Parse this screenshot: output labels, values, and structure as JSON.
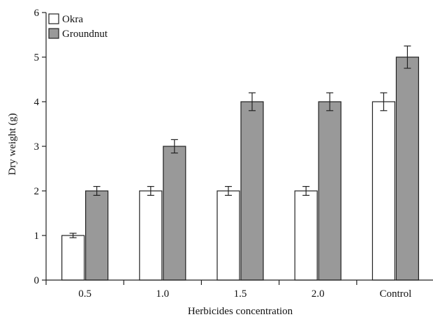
{
  "chart_data": {
    "type": "bar",
    "xlabel": "Herbicides concentration",
    "ylabel": "Dry weight (g)",
    "categories": [
      "0.5",
      "1.0",
      "1.5",
      "2.0",
      "Control"
    ],
    "ylim": [
      0,
      6
    ],
    "yticks": [
      "0",
      "1",
      "2",
      "3",
      "4",
      "5",
      "6"
    ],
    "grid": false,
    "legend_position": "top-left",
    "series": [
      {
        "name": "Okra",
        "color": "#ffffff",
        "values": [
          1.0,
          2.0,
          2.0,
          2.0,
          4.0
        ],
        "errors": [
          0.05,
          0.1,
          0.1,
          0.1,
          0.2
        ]
      },
      {
        "name": "Groundnut",
        "color": "#999999",
        "values": [
          2.0,
          3.0,
          4.0,
          4.0,
          5.0
        ],
        "errors": [
          0.1,
          0.15,
          0.2,
          0.2,
          0.25
        ]
      }
    ]
  }
}
